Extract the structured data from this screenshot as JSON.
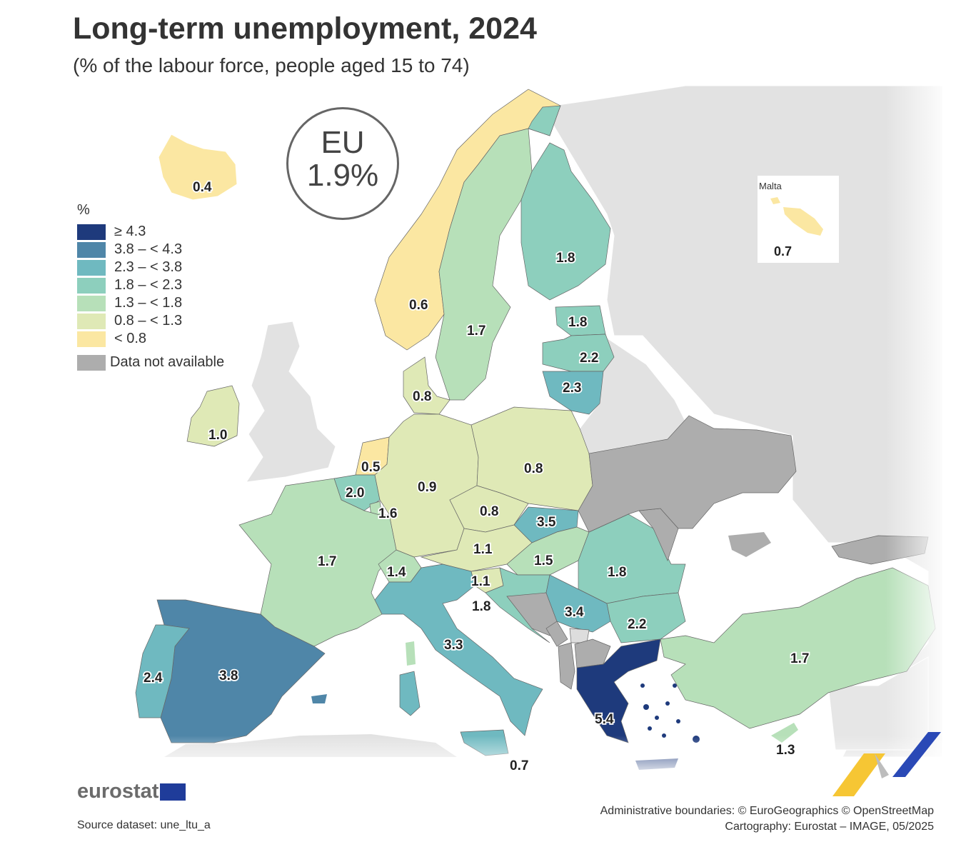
{
  "title": "Long-term unemployment, 2024",
  "subtitle": "(% of the labour force, people aged 15 to 74)",
  "eu_box": {
    "label": "EU",
    "value": "1.9%"
  },
  "legend": {
    "unit": "%",
    "classes": [
      {
        "label": "≥ 4.3",
        "color": "#1e3a7c"
      },
      {
        "label": "3.8 – < 4.3",
        "color": "#4f86a8"
      },
      {
        "label": "2.3 – < 3.8",
        "color": "#6fb9c0"
      },
      {
        "label": "1.8 – < 2.3",
        "color": "#8dcfbd"
      },
      {
        "label": "1.3 – < 1.8",
        "color": "#b7e0b9"
      },
      {
        "label": "0.8 – < 1.3",
        "color": "#dfe9b6"
      },
      {
        "label": "< 0.8",
        "color": "#fbe7a2"
      }
    ],
    "not_available": {
      "label": "Data not available",
      "color": "#adadad"
    }
  },
  "inset": {
    "title": "Malta",
    "value": "0.7"
  },
  "map_data": [
    {
      "country": "Iceland",
      "value": 0.4
    },
    {
      "country": "Norway",
      "value": 0.6
    },
    {
      "country": "Sweden",
      "value": 1.7
    },
    {
      "country": "Finland",
      "value": 1.8
    },
    {
      "country": "Estonia",
      "value": 1.8
    },
    {
      "country": "Latvia",
      "value": 2.2
    },
    {
      "country": "Lithuania",
      "value": 2.3
    },
    {
      "country": "Denmark",
      "value": 0.8
    },
    {
      "country": "Ireland",
      "value": 1.0
    },
    {
      "country": "Netherlands",
      "value": 0.5
    },
    {
      "country": "Belgium",
      "value": 2.0
    },
    {
      "country": "Luxembourg",
      "value": 1.6
    },
    {
      "country": "Germany",
      "value": 0.9
    },
    {
      "country": "Poland",
      "value": 0.8
    },
    {
      "country": "Czechia",
      "value": 0.8
    },
    {
      "country": "Slovakia",
      "value": 3.5
    },
    {
      "country": "Austria",
      "value": 1.1
    },
    {
      "country": "Hungary",
      "value": 1.5
    },
    {
      "country": "Romania",
      "value": 1.8
    },
    {
      "country": "France",
      "value": 1.7
    },
    {
      "country": "Switzerland",
      "value": 1.4
    },
    {
      "country": "Slovenia",
      "value": 1.1
    },
    {
      "country": "Croatia",
      "value": 1.8
    },
    {
      "country": "Serbia",
      "value": 3.4
    },
    {
      "country": "Bulgaria",
      "value": 2.2
    },
    {
      "country": "Italy",
      "value": 3.3
    },
    {
      "country": "Spain",
      "value": 3.8
    },
    {
      "country": "Portugal",
      "value": 2.4
    },
    {
      "country": "Greece",
      "value": 5.4
    },
    {
      "country": "Türkiye",
      "value": 1.7
    },
    {
      "country": "Cyprus",
      "value": 1.3
    },
    {
      "country": "Malta",
      "value": 0.7
    }
  ],
  "labels": {
    "is": "0.4",
    "no": "0.6",
    "se": "1.7",
    "fi": "1.8",
    "ee": "1.8",
    "lv": "2.2",
    "lt": "2.3",
    "dk": "0.8",
    "ie": "1.0",
    "nl": "0.5",
    "be": "2.0",
    "lu": "1.6",
    "de": "0.9",
    "pl": "0.8",
    "cz": "0.8",
    "sk": "3.5",
    "at": "1.1",
    "hu": "1.5",
    "ro": "1.8",
    "fr": "1.7",
    "ch": "1.4",
    "si": "1.1",
    "hr": "1.8",
    "rs": "3.4",
    "bg": "2.2",
    "it": "3.3",
    "es": "3.8",
    "pt": "2.4",
    "el": "5.4",
    "tr": "1.7",
    "cy": "1.3",
    "mt": "0.7"
  },
  "branding": {
    "logo": "eurostat"
  },
  "source": "Source dataset: une_ltu_a",
  "credits": {
    "line1": "Administrative boundaries: © EuroGeographics © OpenStreetMap",
    "line2": "Cartography: Eurostat – IMAGE, 05/2025"
  }
}
